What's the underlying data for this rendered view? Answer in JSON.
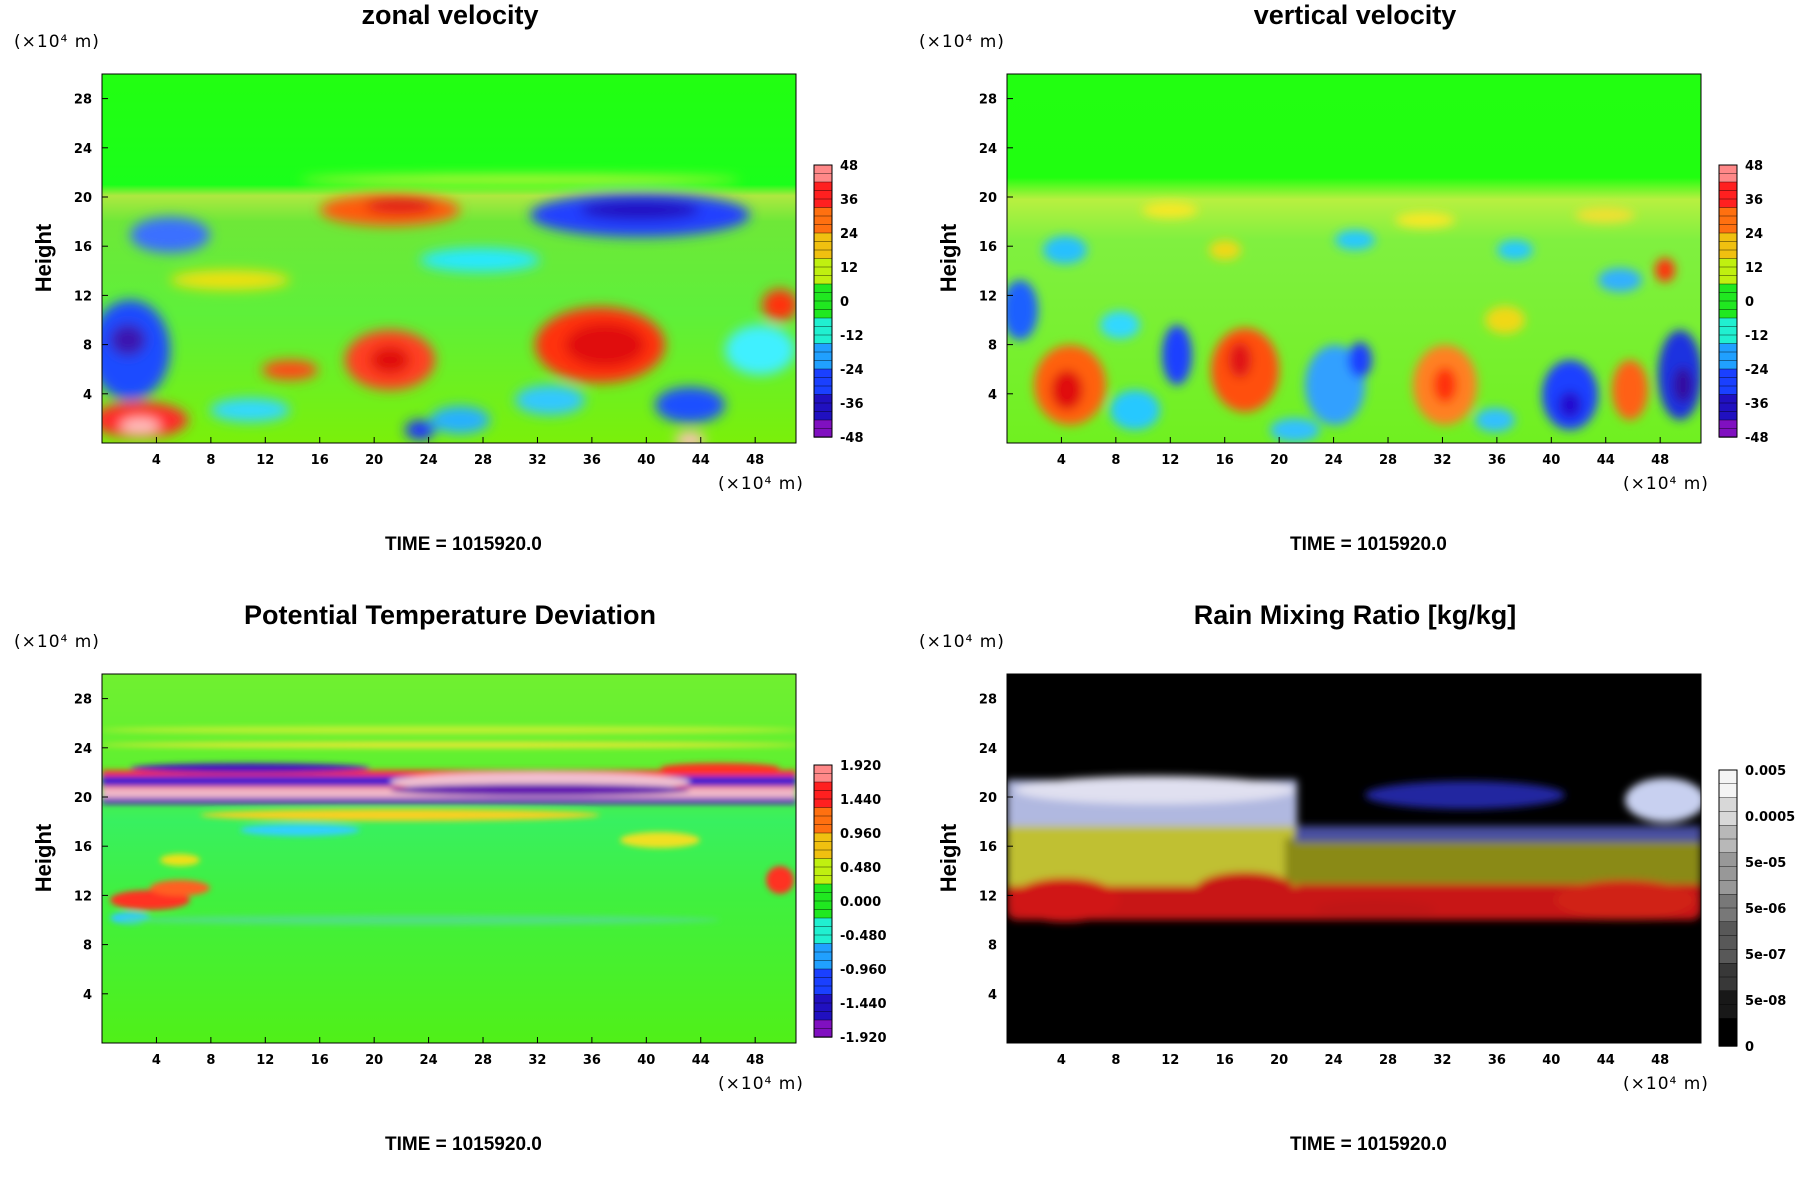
{
  "chart_data": [
    {
      "type": "heatmap",
      "title": "zonal velocity",
      "ylabel": "Height",
      "y_unit": "(×10⁴ m)",
      "x_unit": "(×10⁴ m)",
      "xticks": [
        "4",
        "8",
        "12",
        "16",
        "20",
        "24",
        "28",
        "32",
        "36",
        "40",
        "44",
        "48"
      ],
      "yticks": [
        "4",
        "8",
        "12",
        "16",
        "20",
        "24",
        "28"
      ],
      "xlim": [
        0,
        51
      ],
      "ylim": [
        0,
        30
      ],
      "colorbar": [
        "48",
        "36",
        "24",
        "12",
        "0",
        "-12",
        "-24",
        "-36",
        "-48"
      ],
      "colormap": "rainbow",
      "time": "TIME = 1015920.0"
    },
    {
      "type": "heatmap",
      "title": "vertical velocity",
      "ylabel": "Height",
      "y_unit": "(×10⁴ m)",
      "x_unit": "(×10⁴ m)",
      "xticks": [
        "4",
        "8",
        "12",
        "16",
        "20",
        "24",
        "28",
        "32",
        "36",
        "40",
        "44",
        "48"
      ],
      "yticks": [
        "4",
        "8",
        "12",
        "16",
        "20",
        "24",
        "28"
      ],
      "xlim": [
        0,
        51
      ],
      "ylim": [
        0,
        30
      ],
      "colorbar": [
        "48",
        "36",
        "24",
        "12",
        "0",
        "-12",
        "-24",
        "-36",
        "-48"
      ],
      "colormap": "rainbow",
      "time": "TIME = 1015920.0"
    },
    {
      "type": "heatmap",
      "title": "Potential Temperature Deviation",
      "ylabel": "Height",
      "y_unit": "(×10⁴ m)",
      "x_unit": "(×10⁴ m)",
      "xticks": [
        "4",
        "8",
        "12",
        "16",
        "20",
        "24",
        "28",
        "32",
        "36",
        "40",
        "44",
        "48"
      ],
      "yticks": [
        "4",
        "8",
        "12",
        "16",
        "20",
        "24",
        "28"
      ],
      "xlim": [
        0,
        51
      ],
      "ylim": [
        0,
        30
      ],
      "colorbar": [
        "1.920",
        "1.440",
        "0.960",
        "0.480",
        "0.000",
        "-0.480",
        "-0.960",
        "-1.440",
        "-1.920"
      ],
      "colormap": "rainbow",
      "time": "TIME = 1015920.0"
    },
    {
      "type": "heatmap",
      "title": "Rain Mixing Ratio [kg/kg]",
      "ylabel": "Height",
      "y_unit": "(×10⁴ m)",
      "x_unit": "(×10⁴ m)",
      "xticks": [
        "4",
        "8",
        "12",
        "16",
        "20",
        "24",
        "28",
        "32",
        "36",
        "40",
        "44",
        "48"
      ],
      "yticks": [
        "4",
        "8",
        "12",
        "16",
        "20",
        "24",
        "28"
      ],
      "xlim": [
        0,
        51
      ],
      "ylim": [
        0,
        30
      ],
      "colorbar": [
        "0.005",
        "0.0005",
        "5e-05",
        "5e-06",
        "5e-07",
        "5e-08",
        "0"
      ],
      "colormap": "grayscale",
      "time": "TIME = 1015920.0"
    }
  ]
}
